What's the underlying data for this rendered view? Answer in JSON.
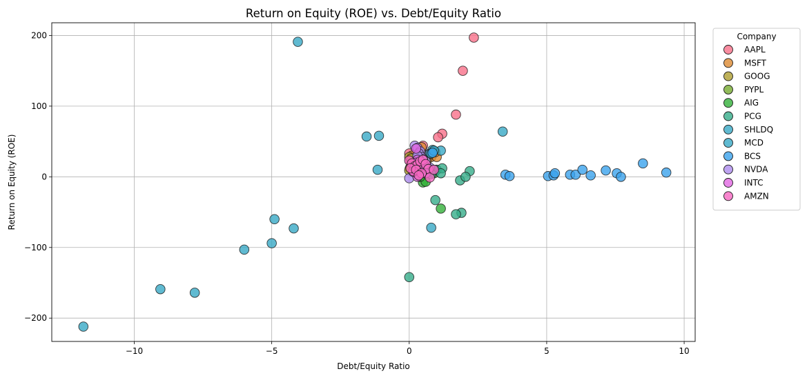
{
  "chart_data": {
    "type": "scatter",
    "title": "Return on Equity (ROE) vs. Debt/Equity Ratio",
    "xlabel": "Debt/Equity Ratio",
    "ylabel": "Return on Equity (ROE)",
    "xlim": [
      -13.0,
      10.4
    ],
    "ylim": [
      -233,
      218
    ],
    "xticks": [
      -10,
      -5,
      0,
      5,
      10
    ],
    "xtick_labels": [
      "−10",
      "−5",
      "0",
      "5",
      "10"
    ],
    "yticks": [
      -200,
      -100,
      0,
      100,
      200
    ],
    "ytick_labels": [
      "−200",
      "−100",
      "0",
      "100",
      "200"
    ],
    "grid": true,
    "legend": {
      "title": "Company",
      "placement": "outside-right"
    },
    "series": [
      {
        "name": "AAPL",
        "color": "#f77189",
        "points": [
          [
            2.35,
            197
          ],
          [
            1.95,
            150
          ],
          [
            1.7,
            88
          ],
          [
            1.2,
            61
          ],
          [
            1.05,
            56
          ],
          [
            0.5,
            44
          ],
          [
            0.3,
            38
          ],
          [
            0.0,
            33
          ],
          [
            0.15,
            30
          ],
          [
            0.1,
            20
          ],
          [
            0.7,
            32
          ]
        ]
      },
      {
        "name": "MSFT",
        "color": "#dc8932",
        "points": [
          [
            0.45,
            42
          ],
          [
            0.35,
            35
          ],
          [
            0.8,
            28
          ],
          [
            1.0,
            28
          ],
          [
            0.55,
            20
          ],
          [
            0.65,
            24
          ],
          [
            0.2,
            25
          ],
          [
            0.1,
            30
          ],
          [
            0.95,
            35
          ]
        ]
      },
      {
        "name": "GOOG",
        "color": "#ae9d31",
        "points": [
          [
            0.0,
            28
          ],
          [
            0.05,
            22
          ],
          [
            0.1,
            18
          ],
          [
            0.05,
            14
          ],
          [
            0.02,
            12
          ],
          [
            0.15,
            16
          ],
          [
            0.0,
            9
          ],
          [
            0.08,
            26
          ],
          [
            0.2,
            21
          ]
        ]
      },
      {
        "name": "PYPL",
        "color": "#77ab31",
        "points": [
          [
            0.3,
            19
          ],
          [
            0.4,
            23
          ],
          [
            0.5,
            16
          ],
          [
            0.35,
            13
          ],
          [
            0.25,
            21
          ],
          [
            0.6,
            25
          ],
          [
            0.45,
            10
          ]
        ]
      },
      {
        "name": "AIG",
        "color": "#33b039",
        "points": [
          [
            1.15,
            -45
          ],
          [
            0.5,
            -8
          ],
          [
            0.6,
            -7
          ],
          [
            0.9,
            5
          ],
          [
            0.7,
            12
          ],
          [
            1.0,
            10
          ],
          [
            0.8,
            8
          ],
          [
            0.4,
            0
          ],
          [
            0.3,
            4
          ]
        ]
      },
      {
        "name": "PCG",
        "color": "#36ad8a",
        "points": [
          [
            0.0,
            -142
          ],
          [
            0.95,
            -33
          ],
          [
            1.0,
            10
          ],
          [
            1.85,
            -5
          ],
          [
            2.2,
            8
          ],
          [
            2.05,
            0
          ],
          [
            1.2,
            12
          ],
          [
            1.9,
            -51
          ],
          [
            1.7,
            -53
          ],
          [
            1.15,
            5
          ],
          [
            0.8,
            4
          ]
        ]
      },
      {
        "name": "SHLDQ",
        "color": "#38a9c5",
        "points": [
          [
            -4.05,
            191
          ],
          [
            -1.55,
            57
          ],
          [
            -1.1,
            58
          ],
          [
            -1.15,
            10
          ],
          [
            -6.0,
            -103
          ],
          [
            -4.9,
            -60
          ],
          [
            -5.0,
            -94
          ],
          [
            -4.2,
            -73
          ],
          [
            -9.05,
            -159
          ],
          [
            -7.8,
            -164
          ],
          [
            -11.85,
            -212
          ],
          [
            0.8,
            -72
          ],
          [
            0.75,
            33
          ],
          [
            0.85,
            38
          ]
        ]
      },
      {
        "name": "MCD",
        "color": "#38a9c5",
        "points": [
          [
            3.4,
            64
          ],
          [
            1.15,
            37
          ],
          [
            0.8,
            33
          ],
          [
            0.9,
            37
          ]
        ]
      },
      {
        "name": "BCS",
        "color": "#3ba3ec",
        "points": [
          [
            3.5,
            3
          ],
          [
            3.65,
            1
          ],
          [
            5.05,
            1
          ],
          [
            5.25,
            2
          ],
          [
            5.3,
            5
          ],
          [
            5.85,
            3
          ],
          [
            6.05,
            3
          ],
          [
            6.3,
            10
          ],
          [
            6.6,
            2
          ],
          [
            7.15,
            9
          ],
          [
            7.55,
            5
          ],
          [
            7.7,
            0
          ],
          [
            8.5,
            19
          ],
          [
            9.35,
            6
          ],
          [
            0.85,
            34
          ]
        ]
      },
      {
        "name": "NVDA",
        "color": "#ae8ced",
        "points": [
          [
            0.2,
            44
          ],
          [
            0.3,
            41
          ],
          [
            0.4,
            36
          ],
          [
            0.35,
            33
          ],
          [
            0.0,
            -2
          ],
          [
            0.45,
            28
          ],
          [
            0.6,
            22
          ],
          [
            0.5,
            25
          ],
          [
            0.35,
            25
          ],
          [
            0.75,
            13
          ],
          [
            0.3,
            30
          ]
        ]
      },
      {
        "name": "INTC",
        "color": "#e168e2",
        "points": [
          [
            0.25,
            40
          ],
          [
            0.3,
            24
          ],
          [
            0.35,
            15
          ],
          [
            0.3,
            0
          ],
          [
            0.55,
            15
          ],
          [
            0.6,
            5
          ],
          [
            0.2,
            12
          ],
          [
            0.25,
            20
          ],
          [
            0.15,
            7
          ]
        ]
      },
      {
        "name": "AMZN",
        "color": "#f668c2",
        "points": [
          [
            0.0,
            23
          ],
          [
            0.1,
            19
          ],
          [
            0.2,
            15
          ],
          [
            0.3,
            17
          ],
          [
            0.4,
            22
          ],
          [
            0.5,
            24
          ],
          [
            0.6,
            18
          ],
          [
            0.7,
            11
          ],
          [
            0.75,
            -1
          ],
          [
            0.9,
            10
          ],
          [
            0.15,
            8
          ],
          [
            0.05,
            12
          ],
          [
            0.25,
            10
          ],
          [
            0.45,
            5
          ],
          [
            0.35,
            2
          ]
        ]
      }
    ]
  }
}
